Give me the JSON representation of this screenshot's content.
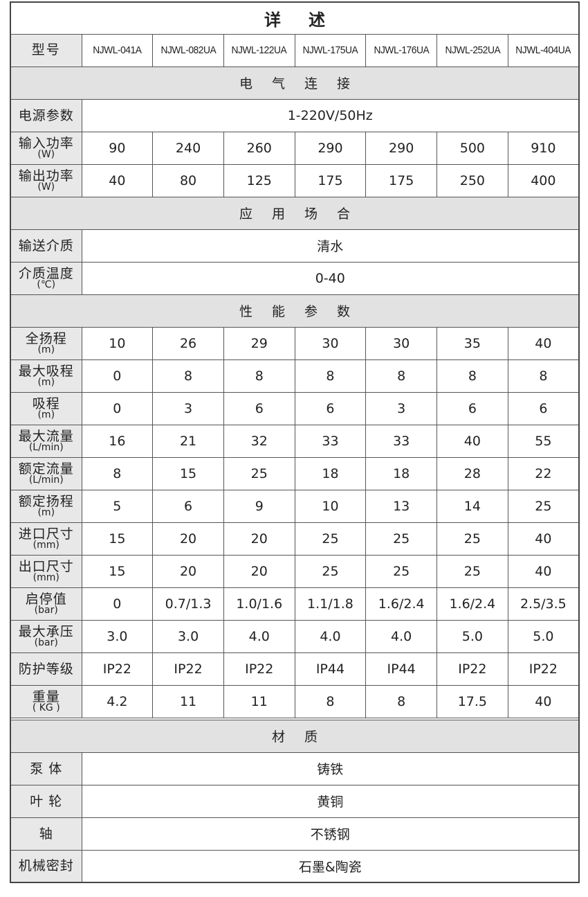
{
  "title": "详述",
  "model": {
    "label": "型号",
    "values": [
      "NJWL-041A",
      "NJWL-082UA",
      "NJWL-122UA",
      "NJWL-175UA",
      "NJWL-176UA",
      "NJWL-252UA",
      "NJWL-404UA"
    ]
  },
  "sections": {
    "electrical": "电气连接",
    "application": "应用场合",
    "performance": "性能参数",
    "material": "材质"
  },
  "electrical": {
    "power_supply": {
      "label": "电源参数",
      "value": "1-220V/50Hz"
    },
    "input_power": {
      "label": "输入功率",
      "unit": "(W)",
      "values": [
        "90",
        "240",
        "260",
        "290",
        "290",
        "500",
        "910"
      ]
    },
    "output_power": {
      "label": "输出功率",
      "unit": "(W)",
      "values": [
        "40",
        "80",
        "125",
        "175",
        "175",
        "250",
        "400"
      ]
    }
  },
  "application": {
    "medium": {
      "label": "输送介质",
      "value": "清水"
    },
    "temperature": {
      "label": "介质温度",
      "unit": "(℃)",
      "value": "0-40"
    }
  },
  "performance": [
    {
      "label": "全扬程",
      "unit": "(m)",
      "values": [
        "10",
        "26",
        "29",
        "30",
        "30",
        "35",
        "40"
      ]
    },
    {
      "label": "最大吸程",
      "unit": "(m)",
      "values": [
        "0",
        "8",
        "8",
        "8",
        "8",
        "8",
        "8"
      ]
    },
    {
      "label": "吸程",
      "unit": "(m)",
      "values": [
        "0",
        "3",
        "6",
        "6",
        "3",
        "6",
        "6"
      ]
    },
    {
      "label": "最大流量",
      "unit": "(L/min)",
      "values": [
        "16",
        "21",
        "32",
        "33",
        "33",
        "40",
        "55"
      ]
    },
    {
      "label": "额定流量",
      "unit": "(L/min)",
      "values": [
        "8",
        "15",
        "25",
        "18",
        "18",
        "28",
        "22"
      ]
    },
    {
      "label": "额定扬程",
      "unit": "(m)",
      "values": [
        "5",
        "6",
        "9",
        "10",
        "13",
        "14",
        "25"
      ]
    },
    {
      "label": "进口尺寸",
      "unit": "(mm)",
      "values": [
        "15",
        "20",
        "20",
        "25",
        "25",
        "25",
        "40"
      ]
    },
    {
      "label": "出口尺寸",
      "unit": "(mm)",
      "values": [
        "15",
        "20",
        "20",
        "25",
        "25",
        "25",
        "40"
      ]
    },
    {
      "label": "启停值",
      "unit": "(bar)",
      "values": [
        "0",
        "0.7/1.3",
        "1.0/1.6",
        "1.1/1.8",
        "1.6/2.4",
        "1.6/2.4",
        "2.5/3.5"
      ]
    },
    {
      "label": "最大承压",
      "unit": "(bar)",
      "values": [
        "3.0",
        "3.0",
        "4.0",
        "4.0",
        "4.0",
        "5.0",
        "5.0"
      ]
    },
    {
      "label": "防护等级",
      "unit": "",
      "values": [
        "IP22",
        "IP22",
        "IP22",
        "IP44",
        "IP44",
        "IP22",
        "IP22"
      ]
    },
    {
      "label": "重量",
      "unit": "( KG )",
      "values": [
        "4.2",
        "11",
        "11",
        "8",
        "8",
        "17.5",
        "40"
      ]
    }
  ],
  "material": [
    {
      "label": "泵 体",
      "value": "铸铁"
    },
    {
      "label": "叶 轮",
      "value": "黄铜"
    },
    {
      "label": "轴",
      "value": "不锈钢"
    },
    {
      "label": "机械密封",
      "value": "石墨&陶瓷"
    }
  ]
}
